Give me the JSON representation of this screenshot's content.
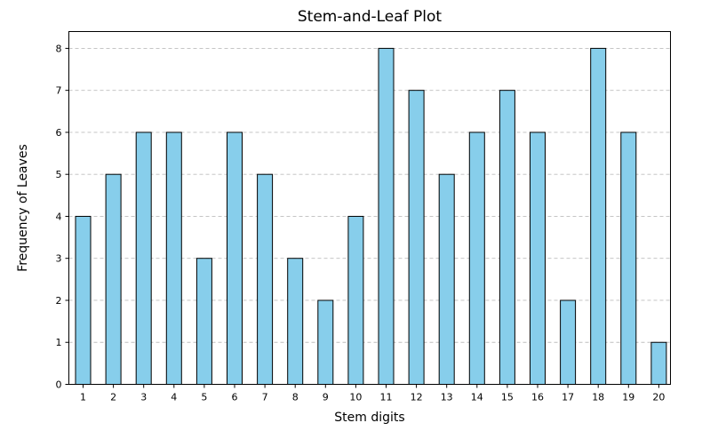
{
  "chart_data": {
    "type": "bar",
    "title": "Stem-and-Leaf Plot",
    "xlabel": "Stem digits",
    "ylabel": "Frequency of Leaves",
    "categories": [
      "1",
      "2",
      "3",
      "4",
      "5",
      "6",
      "7",
      "8",
      "9",
      "10",
      "11",
      "12",
      "13",
      "14",
      "15",
      "16",
      "17",
      "18",
      "19",
      "20"
    ],
    "values": [
      4,
      5,
      6,
      6,
      3,
      6,
      5,
      3,
      2,
      4,
      8,
      7,
      5,
      6,
      7,
      6,
      2,
      8,
      6,
      1
    ],
    "ylim": [
      0,
      8.4
    ],
    "yticks": [
      0,
      1,
      2,
      3,
      4,
      5,
      6,
      7,
      8
    ],
    "grid": "y-dashed",
    "bar_color": "#87CEEB",
    "edge_color": "#000000"
  }
}
